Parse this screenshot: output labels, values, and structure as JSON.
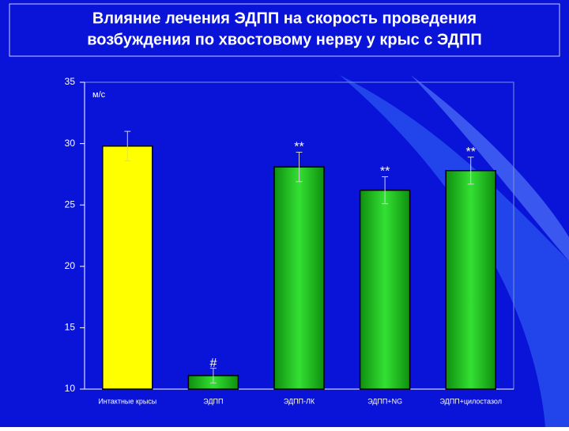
{
  "chart_data": {
    "type": "bar",
    "title_lines": [
      "Влияние лечения ЭДПП на скорость проведения",
      "возбуждения по хвостовому нерву у крыс с ЭДПП"
    ],
    "y_unit_label": "м/с",
    "categories": [
      "Интактные крысы",
      "ЭДПП",
      "ЭДПП-ЛК",
      "ЭДПП+NG",
      "ЭДПП+цилостазол"
    ],
    "values": [
      29.8,
      11.1,
      28.1,
      26.2,
      27.8
    ],
    "errors": [
      1.2,
      0.6,
      1.2,
      1.1,
      1.1
    ],
    "annotations": [
      null,
      "#",
      "**",
      "**",
      "**"
    ],
    "colors": [
      "#ffff00",
      "#22c322",
      "#22c322",
      "#22c322",
      "#22c322"
    ],
    "ylim": [
      10,
      35
    ],
    "yticks": [
      10,
      15,
      20,
      25,
      30,
      35
    ],
    "grid": false
  }
}
